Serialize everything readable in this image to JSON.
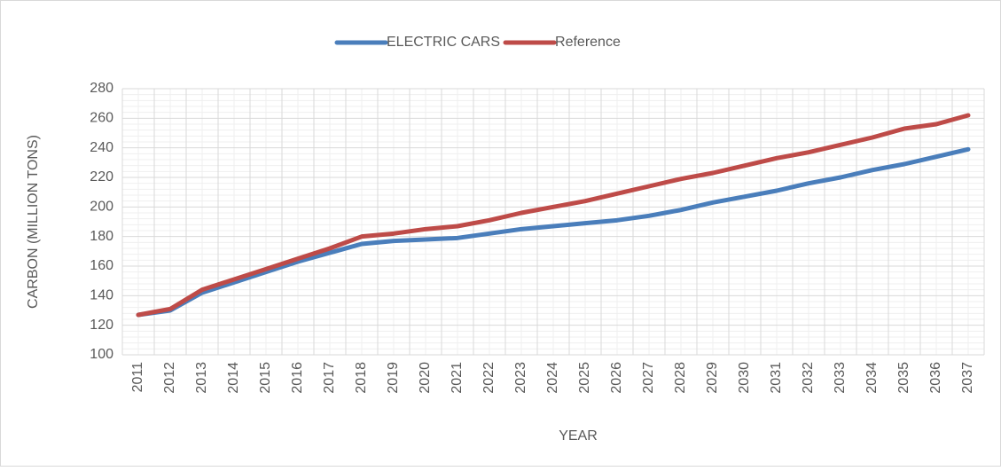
{
  "chart_data": {
    "type": "line",
    "xlabel": "YEAR",
    "ylabel": "CARBON (MILLION TONS)",
    "categories": [
      "2011",
      "2012",
      "2013",
      "2014",
      "2015",
      "2016",
      "2017",
      "2018",
      "2019",
      "2020",
      "2021",
      "2022",
      "2023",
      "2024",
      "2025",
      "2026",
      "2027",
      "2028",
      "2029",
      "2030",
      "2031",
      "2032",
      "2033",
      "2034",
      "2035",
      "2036",
      "2037"
    ],
    "series": [
      {
        "name": "ELECTRIC CARS",
        "color": "#4a7ebb",
        "values": [
          127,
          130,
          142,
          149,
          156,
          163,
          169,
          175,
          177,
          178,
          179,
          182,
          185,
          187,
          189,
          191,
          194,
          198,
          203,
          207,
          211,
          216,
          220,
          225,
          229,
          234,
          239
        ]
      },
      {
        "name": "Reference",
        "color": "#be4b48",
        "values": [
          127,
          131,
          144,
          151,
          158,
          165,
          172,
          180,
          182,
          185,
          187,
          191,
          196,
          200,
          204,
          209,
          214,
          219,
          223,
          228,
          233,
          237,
          242,
          247,
          253,
          256,
          262
        ]
      }
    ],
    "ylim": [
      100,
      280
    ],
    "yticks": [
      100,
      120,
      140,
      160,
      180,
      200,
      220,
      240,
      260,
      280
    ],
    "grid": true,
    "legend": "top"
  }
}
